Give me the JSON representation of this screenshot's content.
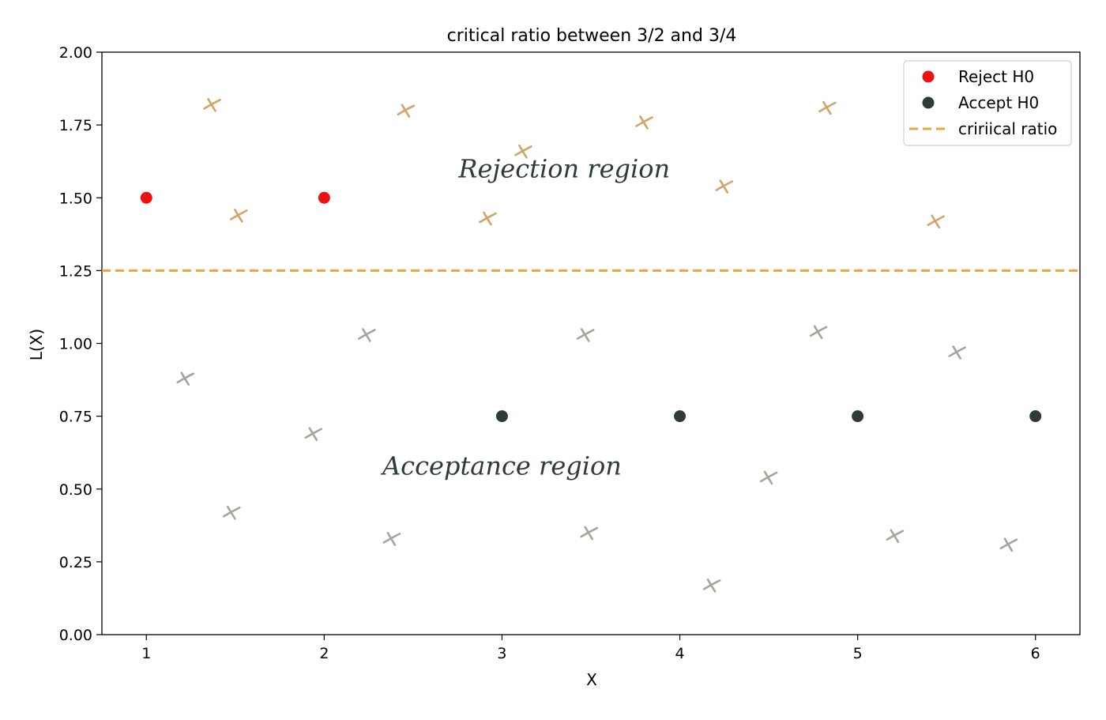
{
  "chart_data": {
    "type": "scatter",
    "title": "critical ratio between 3/2 and 3/4",
    "xlabel": "X",
    "ylabel": "L(X)",
    "xlim": [
      0.75,
      6.25
    ],
    "ylim": [
      0.0,
      2.0
    ],
    "xticks": [
      "1",
      "2",
      "3",
      "4",
      "5",
      "6"
    ],
    "yticks": [
      "0.00",
      "0.25",
      "0.50",
      "0.75",
      "1.00",
      "1.25",
      "1.50",
      "1.75",
      "2.00"
    ],
    "grid": false,
    "legend_position": "top-right",
    "critical_ratio": 1.25,
    "colors": {
      "reject": "#ee1111",
      "accept": "#2f3b34",
      "critical": "#f0a43a",
      "upper_cross": "#d1a46a",
      "lower_cross": "#a6a59c"
    },
    "series": [
      {
        "name": "Reject H0",
        "points": [
          [
            1,
            1.5
          ],
          [
            2,
            1.5
          ]
        ]
      },
      {
        "name": "Accept H0",
        "points": [
          [
            3,
            0.75
          ],
          [
            4,
            0.75
          ],
          [
            5,
            0.75
          ],
          [
            6,
            0.75
          ]
        ]
      }
    ],
    "critical_line_label": "cririical ratio",
    "crosses_upper": [
      [
        1.37,
        1.82
      ],
      [
        1.52,
        1.44
      ],
      [
        2.46,
        1.8
      ],
      [
        2.92,
        1.43
      ],
      [
        3.12,
        1.66
      ],
      [
        3.8,
        1.76
      ],
      [
        4.25,
        1.54
      ],
      [
        4.83,
        1.81
      ],
      [
        5.44,
        1.42
      ]
    ],
    "crosses_lower": [
      [
        1.22,
        0.88
      ],
      [
        1.48,
        0.42
      ],
      [
        1.94,
        0.69
      ],
      [
        2.24,
        1.03
      ],
      [
        2.38,
        0.33
      ],
      [
        3.47,
        1.03
      ],
      [
        3.49,
        0.35
      ],
      [
        4.18,
        0.17
      ],
      [
        4.5,
        0.54
      ],
      [
        4.78,
        1.04
      ],
      [
        5.21,
        0.34
      ],
      [
        5.56,
        0.97
      ],
      [
        5.85,
        0.31
      ]
    ],
    "annotations": [
      {
        "text": "Rejection region",
        "x": 3.35,
        "y": 1.57
      },
      {
        "text": "Acceptance region",
        "x": 3.0,
        "y": 0.55
      }
    ]
  }
}
